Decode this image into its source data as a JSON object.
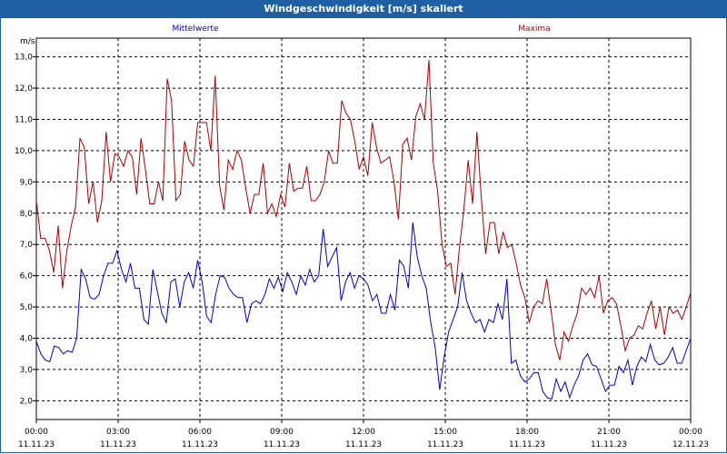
{
  "window": {
    "title": "Windgeschwindigkeit [m/s] skaliert"
  },
  "chart_data": {
    "type": "line",
    "title": "Windgeschwindigkeit [m/s] skaliert",
    "ylabel": "m/s",
    "ylim": [
      1.4,
      13.6
    ],
    "xlim_hours": [
      0,
      24
    ],
    "grid": true,
    "y_ticks": [
      "2,0",
      "3,0",
      "4,0",
      "5,0",
      "6,0",
      "7,0",
      "8,0",
      "9,0",
      "10,0",
      "11,0",
      "12,0",
      "13,0"
    ],
    "x_ticks": [
      {
        "time": "00:00",
        "date": "11.11.23"
      },
      {
        "time": "03:00",
        "date": "11.11.23"
      },
      {
        "time": "06:00",
        "date": "11.11.23"
      },
      {
        "time": "09:00",
        "date": "11.11.23"
      },
      {
        "time": "12:00",
        "date": "11.11.23"
      },
      {
        "time": "15:00",
        "date": "11.11.23"
      },
      {
        "time": "18:00",
        "date": "11.11.23"
      },
      {
        "time": "21:00",
        "date": "11.11.23"
      },
      {
        "time": "00:00",
        "date": "12.11.23"
      }
    ],
    "series": [
      {
        "name": "Mittelwerte",
        "color": "#0000cc",
        "values": [
          3.9,
          3.5,
          3.3,
          3.25,
          3.75,
          3.7,
          3.5,
          3.6,
          3.55,
          4.0,
          6.2,
          5.9,
          5.3,
          5.25,
          5.4,
          6.0,
          6.4,
          6.4,
          6.8,
          6.2,
          5.8,
          6.4,
          5.6,
          5.6,
          4.6,
          4.45,
          6.2,
          5.5,
          4.8,
          4.5,
          5.8,
          5.9,
          5.0,
          5.8,
          6.1,
          5.6,
          6.5,
          5.8,
          4.7,
          4.5,
          5.4,
          6.0,
          5.95,
          5.6,
          5.4,
          5.3,
          5.3,
          4.5,
          5.1,
          5.2,
          5.1,
          5.4,
          5.9,
          5.6,
          5.95,
          5.5,
          6.1,
          5.8,
          5.4,
          6.0,
          5.7,
          6.2,
          5.8,
          6.0,
          7.5,
          6.3,
          6.6,
          6.9,
          5.2,
          5.8,
          6.1,
          5.6,
          6.0,
          5.9,
          5.7,
          5.2,
          5.4,
          4.8,
          4.8,
          5.4,
          4.9,
          6.5,
          6.3,
          5.6,
          7.7,
          6.6,
          6.0,
          5.6,
          4.5,
          3.7,
          2.35,
          3.4,
          4.2,
          4.6,
          5.0,
          6.1,
          5.2,
          4.8,
          4.5,
          4.6,
          4.2,
          4.6,
          4.5,
          5.1,
          4.6,
          5.9,
          3.2,
          3.3,
          2.8,
          2.6,
          2.7,
          2.9,
          2.9,
          2.3,
          2.1,
          2.05,
          2.7,
          2.3,
          2.6,
          2.1,
          2.5,
          2.8,
          3.3,
          3.5,
          3.15,
          3.1,
          2.7,
          2.3,
          2.5,
          2.5,
          3.1,
          2.9,
          3.3,
          2.5,
          3.1,
          3.4,
          3.25,
          3.8,
          3.3,
          3.15,
          3.2,
          3.4,
          3.7,
          3.2,
          3.2,
          3.6,
          4.0
        ]
      },
      {
        "name": "Maxima",
        "color": "#aa0000",
        "values": [
          8.4,
          7.2,
          7.2,
          6.8,
          6.1,
          7.6,
          5.6,
          6.8,
          7.6,
          8.2,
          10.4,
          10.1,
          8.3,
          9.0,
          7.7,
          8.4,
          10.6,
          9.0,
          9.9,
          9.8,
          9.5,
          10.0,
          9.8,
          8.6,
          10.4,
          9.4,
          8.3,
          8.3,
          9.0,
          8.4,
          12.3,
          11.6,
          8.4,
          8.6,
          10.3,
          9.7,
          9.5,
          10.9,
          10.9,
          10.9,
          10.0,
          12.4,
          8.9,
          8.1,
          9.7,
          9.4,
          10.0,
          9.7,
          8.8,
          8.0,
          8.6,
          8.6,
          9.6,
          8.0,
          8.3,
          7.9,
          8.6,
          8.2,
          9.6,
          8.7,
          8.8,
          8.8,
          9.5,
          8.4,
          8.4,
          8.6,
          9.0,
          10.0,
          9.6,
          9.6,
          11.6,
          11.2,
          11.0,
          10.3,
          9.4,
          9.8,
          9.2,
          10.9,
          10.1,
          9.6,
          9.7,
          9.8,
          9.0,
          7.8,
          10.2,
          10.4,
          9.7,
          11.1,
          11.5,
          11.0,
          12.9,
          9.6,
          8.7,
          7.0,
          6.3,
          6.4,
          5.4,
          6.9,
          8.1,
          9.7,
          8.3,
          10.6,
          8.5,
          6.7,
          7.7,
          7.7,
          6.7,
          7.4,
          6.9,
          7.0,
          6.4,
          5.7,
          5.3,
          4.5,
          5.0,
          5.2,
          5.1,
          5.9,
          4.9,
          3.8,
          3.3,
          4.2,
          3.9,
          4.4,
          4.8,
          5.6,
          5.4,
          5.6,
          5.3,
          6.0,
          4.8,
          5.2,
          5.3,
          5.1,
          4.4,
          3.6,
          4.0,
          4.1,
          4.4,
          4.3,
          4.8,
          5.2,
          4.3,
          5.0,
          4.1,
          5.0,
          4.8,
          4.9,
          4.6,
          5.0,
          5.45
        ]
      }
    ]
  }
}
